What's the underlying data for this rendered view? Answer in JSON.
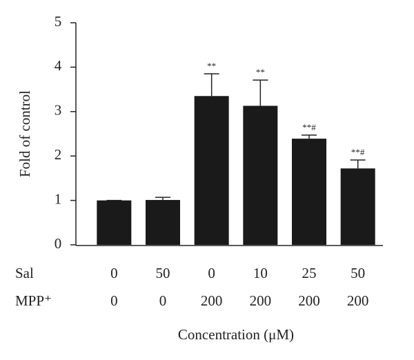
{
  "chart_data": {
    "type": "bar",
    "y_label": "Fold of control",
    "x_label": "Concentration (μM)",
    "category_rows": [
      {
        "name": "Sal",
        "labels": [
          "0",
          "50",
          "0",
          "10",
          "25",
          "50"
        ]
      },
      {
        "name": "MPP⁺",
        "labels": [
          "0",
          "0",
          "200",
          "200",
          "200",
          "200"
        ]
      }
    ],
    "values": [
      1.0,
      1.01,
      3.35,
      3.13,
      2.39,
      1.72
    ],
    "errors": [
      0,
      0.06,
      0.5,
      0.58,
      0.08,
      0.19
    ],
    "annotations": [
      null,
      null,
      "**",
      "**",
      "**#",
      "**#"
    ],
    "color": "#1a1a1a",
    "ylim": [
      0,
      5
    ],
    "yticks": [
      0,
      1,
      2,
      3,
      4,
      5
    ],
    "grid": false
  }
}
